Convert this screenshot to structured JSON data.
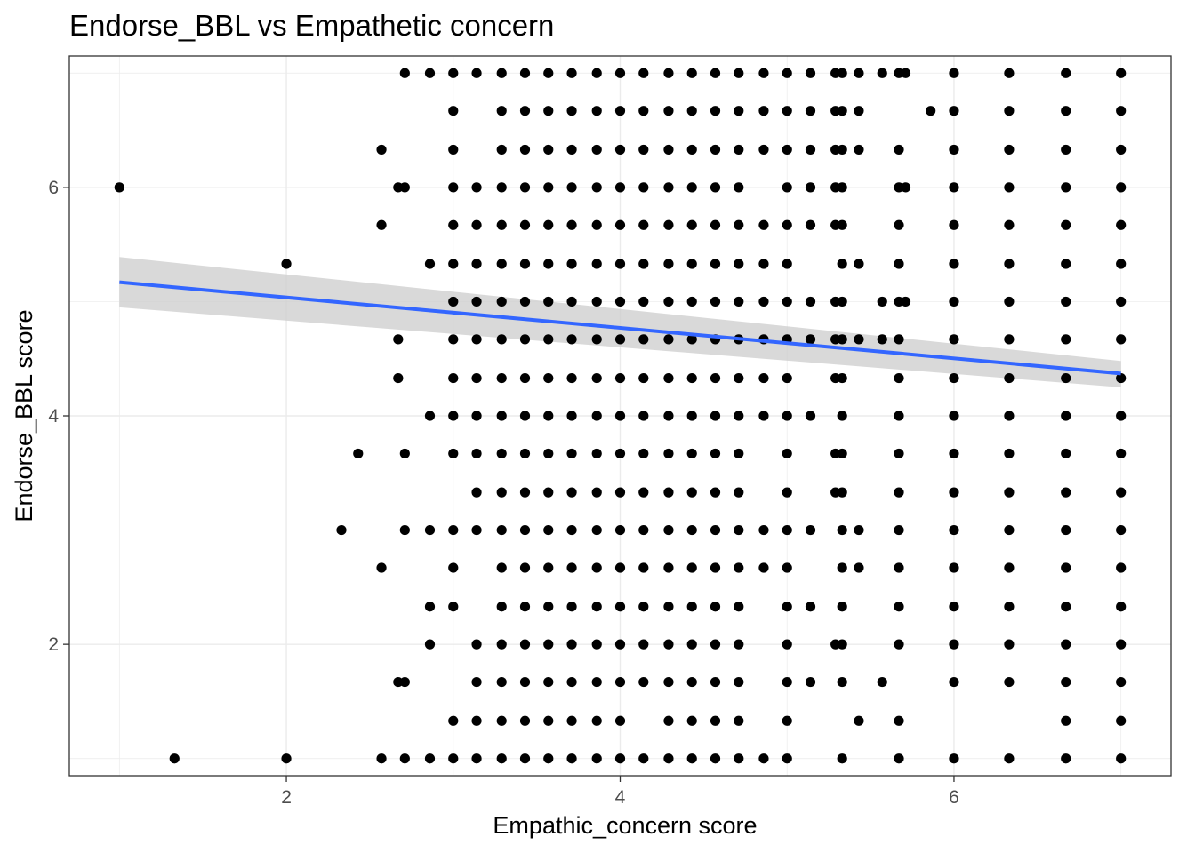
{
  "chart_data": {
    "type": "scatter",
    "title": "Endorse_BBL vs Empathetic concern",
    "xlabel": "Empathic_concern score",
    "ylabel": "Endorse_BBL score",
    "xlim": [
      0.7,
      7.3
    ],
    "ylim": [
      0.85,
      7.15
    ],
    "x_ticks": [
      2,
      4,
      6
    ],
    "y_ticks": [
      2,
      4,
      6
    ],
    "grid": true,
    "point_color": "#000000",
    "trend": {
      "method": "linear fit with confidence band",
      "color": "#3366ff",
      "band_color": "#cccccc",
      "x": [
        1,
        7
      ],
      "y": [
        5.17,
        4.37
      ],
      "ci_lower": [
        4.95,
        4.25
      ],
      "ci_upper": [
        5.39,
        4.48
      ]
    },
    "points_by_x": [
      {
        "x": 1.0,
        "y": [
          6
        ]
      },
      {
        "x": 1.33,
        "y": [
          1
        ]
      },
      {
        "x": 2.0,
        "y": [
          5.33,
          1
        ]
      },
      {
        "x": 2.33,
        "y": [
          3
        ]
      },
      {
        "x": 2.43,
        "y": [
          3.67
        ]
      },
      {
        "x": 2.57,
        "y": [
          6.33,
          5.67,
          2.67,
          1
        ]
      },
      {
        "x": 2.67,
        "y": [
          6,
          4.67,
          4.33,
          1.67
        ]
      },
      {
        "x": 2.71,
        "y": [
          7,
          6,
          3.67,
          3,
          1.67,
          1
        ]
      },
      {
        "x": 2.86,
        "y": [
          7,
          5.33,
          4,
          3,
          2.33,
          2,
          1
        ]
      },
      {
        "x": 3.0,
        "y": [
          7,
          6.67,
          6.33,
          6,
          5.67,
          5.33,
          5,
          4.67,
          4.33,
          4,
          3.67,
          3,
          2.67,
          2.33,
          1.33,
          1
        ]
      },
      {
        "x": 3.14,
        "y": [
          7,
          6,
          5.67,
          5.33,
          5,
          4.67,
          4.33,
          4,
          3.67,
          3.33,
          3,
          2,
          1.67,
          1.33,
          1
        ]
      },
      {
        "x": 3.29,
        "y": [
          7,
          6.67,
          6.33,
          6,
          5.67,
          5.33,
          5,
          4.67,
          4.33,
          4,
          3.67,
          3.33,
          3,
          2.67,
          2.33,
          2,
          1.67,
          1.33,
          1
        ]
      },
      {
        "x": 3.43,
        "y": [
          7,
          6.67,
          6.33,
          6,
          5.67,
          5.33,
          5,
          4.67,
          4.33,
          4,
          3.67,
          3.33,
          3,
          2.67,
          2.33,
          2,
          1.67,
          1.33,
          1
        ]
      },
      {
        "x": 3.57,
        "y": [
          7,
          6.67,
          6.33,
          6,
          5.67,
          5.33,
          5,
          4.67,
          4.33,
          4,
          3.67,
          3.33,
          3,
          2.67,
          2.33,
          2,
          1.67,
          1.33,
          1
        ]
      },
      {
        "x": 3.71,
        "y": [
          7,
          6.67,
          6.33,
          6,
          5.67,
          5.33,
          5,
          4.67,
          4.33,
          4,
          3.67,
          3.33,
          3,
          2.67,
          2.33,
          2,
          1.67,
          1.33,
          1
        ]
      },
      {
        "x": 3.86,
        "y": [
          7,
          6.67,
          6.33,
          6,
          5.67,
          5.33,
          5,
          4.67,
          4.33,
          4,
          3.67,
          3.33,
          3,
          2.67,
          2.33,
          2,
          1.67,
          1.33,
          1
        ]
      },
      {
        "x": 4.0,
        "y": [
          7,
          6.67,
          6.33,
          6,
          5.67,
          5.33,
          5,
          4.67,
          4.33,
          4,
          3.67,
          3.33,
          3,
          2.67,
          2.33,
          2,
          1.67,
          1.33,
          1
        ]
      },
      {
        "x": 4.14,
        "y": [
          7,
          6.67,
          6.33,
          6,
          5.67,
          5.33,
          5,
          4.67,
          4.33,
          4,
          3.67,
          3.33,
          3,
          2.67,
          2.33,
          2,
          1.67,
          1
        ]
      },
      {
        "x": 4.29,
        "y": [
          7,
          6.67,
          6.33,
          6,
          5.67,
          5.33,
          5,
          4.67,
          4.33,
          4,
          3.67,
          3.33,
          3,
          2.67,
          2.33,
          2,
          1.67,
          1.33,
          1
        ]
      },
      {
        "x": 4.43,
        "y": [
          7,
          6.67,
          6.33,
          6,
          5.67,
          5.33,
          5,
          4.67,
          4.33,
          4,
          3.67,
          3.33,
          3,
          2.67,
          2.33,
          2,
          1.67,
          1.33,
          1
        ]
      },
      {
        "x": 4.57,
        "y": [
          7,
          6.67,
          6.33,
          6,
          5.67,
          5.33,
          5,
          4.67,
          4.33,
          4,
          3.67,
          3.33,
          3,
          2.67,
          2.33,
          2,
          1.67,
          1.33,
          1
        ]
      },
      {
        "x": 4.71,
        "y": [
          7,
          6.67,
          6.33,
          6,
          5.67,
          5.33,
          5,
          4.67,
          4.33,
          4,
          3.67,
          3.33,
          3,
          2.67,
          2.33,
          2,
          1.67,
          1.33,
          1
        ]
      },
      {
        "x": 4.86,
        "y": [
          7,
          6.67,
          6.33,
          5.67,
          5.33,
          5,
          4.67,
          4.33,
          4,
          3,
          2.67,
          1
        ]
      },
      {
        "x": 5.0,
        "y": [
          7,
          6.67,
          6.33,
          6,
          5.67,
          5.33,
          5,
          4.67,
          4.33,
          4,
          3.67,
          3.33,
          3,
          2.67,
          2.33,
          2,
          1.67,
          1.33,
          1
        ]
      },
      {
        "x": 5.14,
        "y": [
          7,
          6.67,
          6.33,
          6,
          5.67,
          5,
          4.67,
          4,
          3,
          2.33,
          1.67
        ]
      },
      {
        "x": 5.29,
        "y": [
          7,
          6.67,
          6.33,
          6,
          5.67,
          5,
          4.67,
          4.33,
          3.67,
          3.33,
          2
        ]
      },
      {
        "x": 5.33,
        "y": [
          7,
          6.67,
          6.33,
          6,
          5.67,
          5.33,
          5,
          4.67,
          4.33,
          4,
          3.67,
          3.33,
          3,
          2.67,
          2.33,
          2,
          1.67,
          1
        ]
      },
      {
        "x": 5.43,
        "y": [
          7,
          6.67,
          6.33,
          5.33,
          4.67,
          3,
          2.67,
          1.33
        ]
      },
      {
        "x": 5.57,
        "y": [
          7,
          5,
          4.67,
          1.67
        ]
      },
      {
        "x": 5.67,
        "y": [
          7,
          6.33,
          6,
          5.67,
          5.33,
          5,
          4.67,
          4.33,
          4,
          3.67,
          3.33,
          3,
          2.67,
          2.33,
          2,
          1.33,
          1
        ]
      },
      {
        "x": 5.71,
        "y": [
          7,
          6,
          5
        ]
      },
      {
        "x": 5.86,
        "y": [
          6.67
        ]
      },
      {
        "x": 6.0,
        "y": [
          7,
          6.67,
          6.33,
          6,
          5.67,
          5.33,
          5,
          4.67,
          4.33,
          4,
          3.67,
          3.33,
          3,
          2.67,
          2.33,
          2,
          1.67,
          1
        ]
      },
      {
        "x": 6.33,
        "y": [
          7,
          6.67,
          6.33,
          6,
          5.67,
          5.33,
          5,
          4.67,
          4.33,
          4,
          3.67,
          3.33,
          3,
          2.67,
          2.33,
          2,
          1.67,
          1
        ]
      },
      {
        "x": 6.67,
        "y": [
          7,
          6.67,
          6.33,
          6,
          5.67,
          5.33,
          5,
          4.67,
          4.33,
          4,
          3.67,
          3.33,
          3,
          2.67,
          2.33,
          2,
          1.67,
          1.33,
          1
        ]
      },
      {
        "x": 7.0,
        "y": [
          7,
          6.67,
          6.33,
          6,
          5.67,
          5.33,
          5,
          4.67,
          4.33,
          4,
          3.67,
          3.33,
          3,
          2.67,
          2.33,
          2,
          1.67,
          1.33,
          1
        ]
      }
    ]
  }
}
